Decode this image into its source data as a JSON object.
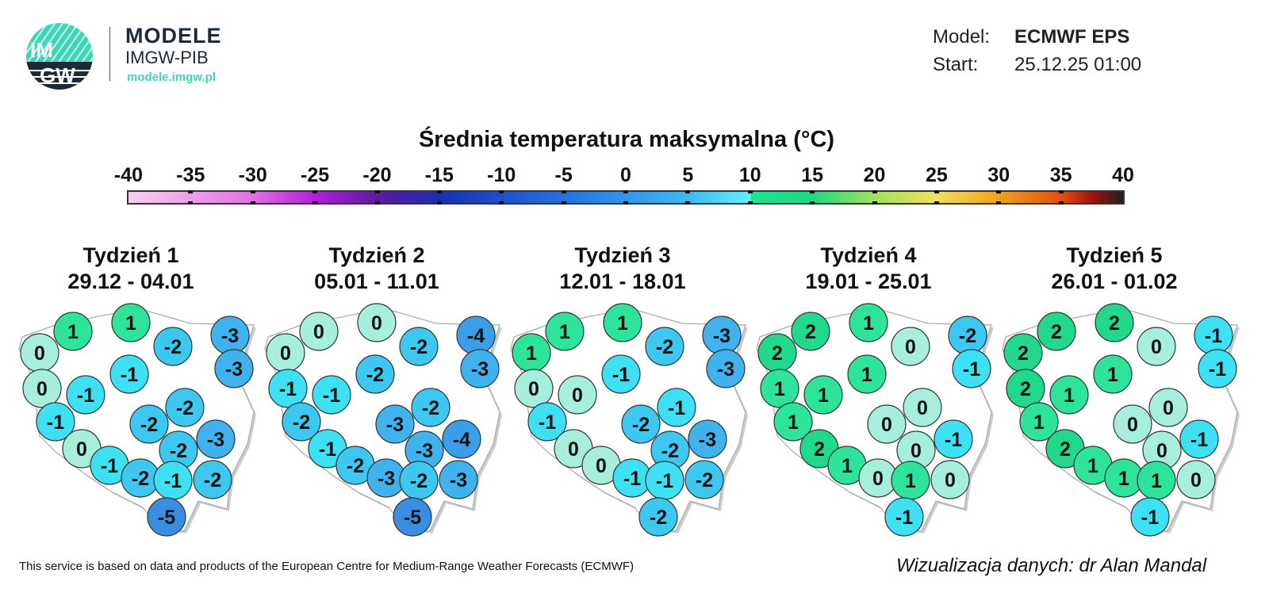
{
  "logo": {
    "text_top": "IM",
    "text_bottom": "GW",
    "brand_line1": "MODELE",
    "brand_line2": "IMGW-PIB",
    "url": "modele.imgw.pl",
    "accent": "#3ed6b6",
    "dark": "#1e2a3a"
  },
  "meta": {
    "model_label": "Model:",
    "model_value": "ECMWF EPS",
    "start_label": "Start:",
    "start_value": "25.12.25 01:00"
  },
  "title": "Średnia temperatura maksymalna (°C)",
  "colorbar": {
    "ticks": [
      "-40",
      "-35",
      "-30",
      "-25",
      "-20",
      "-15",
      "-10",
      "-5",
      "0",
      "5",
      "10",
      "15",
      "20",
      "25",
      "30",
      "35",
      "40"
    ],
    "min": -40,
    "max": 40
  },
  "weeks": [
    {
      "name": "Tydzień 1",
      "dates": "29.12 - 04.01",
      "values": [
        0,
        1,
        1,
        -2,
        -3,
        0,
        -1,
        -3,
        -1,
        -2,
        -1,
        -2,
        0,
        -3,
        -2,
        -1,
        -2,
        -1,
        -2,
        -5
      ]
    },
    {
      "name": "Tydzień 2",
      "dates": "05.01 - 11.01",
      "values": [
        0,
        0,
        0,
        -2,
        -4,
        -1,
        -2,
        -3,
        -1,
        -2,
        -2,
        -3,
        -1,
        -4,
        -3,
        -2,
        -3,
        -2,
        -3,
        -5
      ]
    },
    {
      "name": "Tydzień 3",
      "dates": "12.01 - 18.01",
      "values": [
        1,
        1,
        1,
        -2,
        -3,
        0,
        -1,
        -3,
        0,
        -1,
        -1,
        -2,
        0,
        -3,
        -2,
        0,
        -1,
        -1,
        -2,
        -2
      ]
    },
    {
      "name": "Tydzień 4",
      "dates": "19.01 - 25.01",
      "values": [
        2,
        2,
        1,
        0,
        -2,
        1,
        1,
        -1,
        1,
        0,
        1,
        0,
        2,
        -1,
        0,
        1,
        0,
        1,
        0,
        -1
      ]
    },
    {
      "name": "Tydzień 5",
      "dates": "26.01 - 01.02",
      "values": [
        2,
        2,
        2,
        0,
        -1,
        2,
        1,
        -1,
        1,
        0,
        1,
        0,
        2,
        -1,
        0,
        1,
        1,
        1,
        0,
        -1
      ]
    }
  ],
  "value_colors": {
    "-5": "#3a8ee2",
    "-4": "#3a9fe8",
    "-3": "#40b2ee",
    "-2": "#3cc8f0",
    "-1": "#3ee0f4",
    "0": "#a6efdc",
    "1": "#2ee39a",
    "2": "#22d88a"
  },
  "footer": {
    "left": "This service is based on data and products of the European Centre for Medium-Range Weather Forecasts (ECMWF)",
    "right": "Wizualizacja danych: dr Alan Mandal"
  }
}
